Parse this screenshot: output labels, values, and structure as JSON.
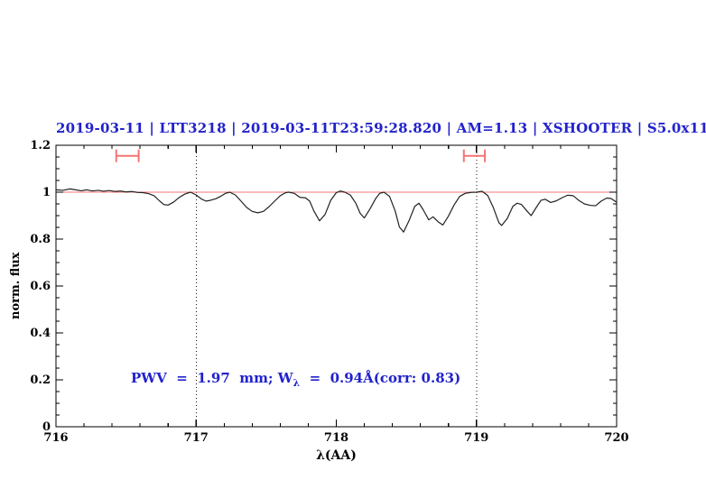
{
  "figure": {
    "title": "2019-03-11 | LTT3218 | 2019-03-11T23:59:28.820 | AM=1.13 | XSHOOTER | S5.0x11",
    "annotation": {
      "prefix": "PWV  =  1.97  mm; W",
      "sub": "λ",
      "suffix": "  =  0.94Å(corr: 0.83)"
    }
  },
  "colors": {
    "accent_blue": "#2222cc",
    "reference_red": "#f57575",
    "spectrum_line": "#222222",
    "frame": "#000000"
  },
  "chart_data": {
    "type": "line",
    "title": "2019-03-11 | LTT3218 | 2019-03-11T23:59:28.820 | AM=1.13 | XSHOOTER | S5.0x11",
    "xlabel": "λ(AA)",
    "ylabel": "norm. flux",
    "xlim": [
      716,
      720
    ],
    "ylim": [
      0,
      1.2
    ],
    "grid": "off",
    "legend": "none",
    "x_ticks": [
      {
        "v": 716,
        "label": "716"
      },
      {
        "v": 717,
        "label": "717"
      },
      {
        "v": 718,
        "label": "718"
      },
      {
        "v": 719,
        "label": "719"
      },
      {
        "v": 720,
        "label": "720"
      }
    ],
    "x_minor_step": 0.2,
    "y_ticks": [
      {
        "v": 0,
        "label": "0"
      },
      {
        "v": 0.2,
        "label": "0.2"
      },
      {
        "v": 0.4,
        "label": "0.4"
      },
      {
        "v": 0.6,
        "label": "0.6"
      },
      {
        "v": 0.8,
        "label": "0.8"
      },
      {
        "v": 1,
        "label": "1"
      },
      {
        "v": 1.2,
        "label": "1.2"
      }
    ],
    "y_minor_step": 0.05,
    "dotted_vlines_x": [
      717,
      719
    ],
    "continuum_line_y": 1.0,
    "range_markers": [
      {
        "x1": 716.43,
        "x2": 716.59,
        "y": 1.155,
        "cap": 0.027
      },
      {
        "x1": 718.91,
        "x2": 719.06,
        "y": 1.155,
        "cap": 0.027
      }
    ],
    "annotation": "PWV = 1.97 mm; Wλ = 0.94Å(corr: 0.83)",
    "series": [
      {
        "name": "normalized telluric spectrum",
        "points": [
          [
            716.0,
            1.01
          ],
          [
            716.05,
            1.008
          ],
          [
            716.1,
            1.014
          ],
          [
            716.14,
            1.01
          ],
          [
            716.18,
            1.006
          ],
          [
            716.22,
            1.01
          ],
          [
            716.26,
            1.005
          ],
          [
            716.3,
            1.008
          ],
          [
            716.34,
            1.004
          ],
          [
            716.38,
            1.007
          ],
          [
            716.42,
            1.003
          ],
          [
            716.46,
            1.005
          ],
          [
            716.5,
            1.001
          ],
          [
            716.54,
            1.003
          ],
          [
            716.58,
            0.999
          ],
          [
            716.62,
            0.998
          ],
          [
            716.66,
            0.994
          ],
          [
            716.7,
            0.985
          ],
          [
            716.74,
            0.962
          ],
          [
            716.77,
            0.947
          ],
          [
            716.8,
            0.945
          ],
          [
            716.84,
            0.958
          ],
          [
            716.88,
            0.978
          ],
          [
            716.92,
            0.992
          ],
          [
            716.96,
            1.0
          ],
          [
            717.0,
            0.988
          ],
          [
            717.04,
            0.97
          ],
          [
            717.07,
            0.962
          ],
          [
            717.1,
            0.965
          ],
          [
            717.14,
            0.972
          ],
          [
            717.18,
            0.984
          ],
          [
            717.21,
            0.995
          ],
          [
            717.24,
            1.0
          ],
          [
            717.28,
            0.988
          ],
          [
            717.32,
            0.962
          ],
          [
            717.36,
            0.935
          ],
          [
            717.4,
            0.918
          ],
          [
            717.44,
            0.912
          ],
          [
            717.48,
            0.918
          ],
          [
            717.52,
            0.938
          ],
          [
            717.56,
            0.962
          ],
          [
            717.6,
            0.985
          ],
          [
            717.64,
            0.998
          ],
          [
            717.66,
            1.0
          ],
          [
            717.7,
            0.995
          ],
          [
            717.74,
            0.978
          ],
          [
            717.78,
            0.976
          ],
          [
            717.81,
            0.962
          ],
          [
            717.84,
            0.92
          ],
          [
            717.88,
            0.878
          ],
          [
            717.92,
            0.905
          ],
          [
            717.96,
            0.965
          ],
          [
            718.0,
            0.998
          ],
          [
            718.03,
            1.005
          ],
          [
            718.06,
            1.0
          ],
          [
            718.1,
            0.988
          ],
          [
            718.14,
            0.952
          ],
          [
            718.17,
            0.91
          ],
          [
            718.2,
            0.89
          ],
          [
            718.24,
            0.928
          ],
          [
            718.28,
            0.972
          ],
          [
            718.31,
            0.995
          ],
          [
            718.34,
            1.0
          ],
          [
            718.38,
            0.982
          ],
          [
            718.42,
            0.92
          ],
          [
            718.45,
            0.852
          ],
          [
            718.48,
            0.83
          ],
          [
            718.52,
            0.88
          ],
          [
            718.56,
            0.94
          ],
          [
            718.59,
            0.953
          ],
          [
            718.62,
            0.925
          ],
          [
            718.66,
            0.882
          ],
          [
            718.69,
            0.895
          ],
          [
            718.73,
            0.872
          ],
          [
            718.76,
            0.86
          ],
          [
            718.8,
            0.898
          ],
          [
            718.84,
            0.945
          ],
          [
            718.88,
            0.982
          ],
          [
            718.92,
            0.995
          ],
          [
            718.96,
            0.999
          ],
          [
            719.0,
            1.0
          ],
          [
            719.04,
            1.004
          ],
          [
            719.08,
            0.986
          ],
          [
            719.12,
            0.935
          ],
          [
            719.16,
            0.87
          ],
          [
            719.18,
            0.858
          ],
          [
            719.22,
            0.888
          ],
          [
            719.26,
            0.94
          ],
          [
            719.29,
            0.953
          ],
          [
            719.32,
            0.948
          ],
          [
            719.36,
            0.92
          ],
          [
            719.39,
            0.9
          ],
          [
            719.43,
            0.938
          ],
          [
            719.46,
            0.965
          ],
          [
            719.49,
            0.97
          ],
          [
            719.53,
            0.956
          ],
          [
            719.57,
            0.963
          ],
          [
            719.61,
            0.976
          ],
          [
            719.65,
            0.987
          ],
          [
            719.69,
            0.985
          ],
          [
            719.73,
            0.965
          ],
          [
            719.77,
            0.95
          ],
          [
            719.81,
            0.944
          ],
          [
            719.85,
            0.942
          ],
          [
            719.89,
            0.962
          ],
          [
            719.93,
            0.975
          ],
          [
            719.96,
            0.973
          ],
          [
            720.0,
            0.957
          ]
        ]
      }
    ]
  }
}
